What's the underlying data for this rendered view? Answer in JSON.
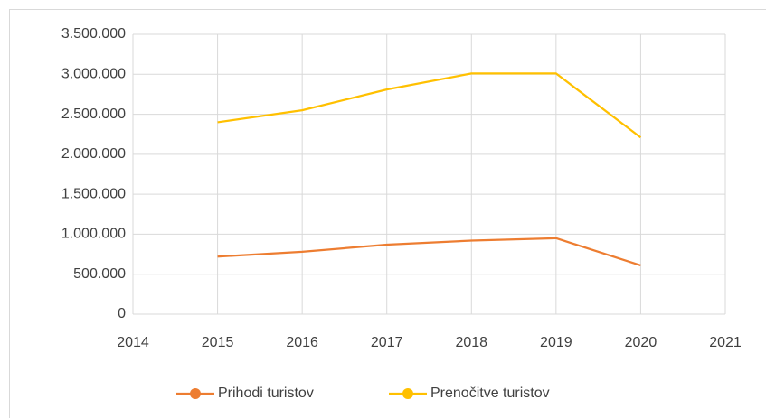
{
  "chart_data": {
    "type": "line",
    "x": [
      2015,
      2016,
      2017,
      2018,
      2019,
      2020
    ],
    "series": [
      {
        "name": "Prihodi turistov",
        "color": "#ed7d31",
        "values": [
          720000,
          780000,
          870000,
          920000,
          950000,
          610000
        ]
      },
      {
        "name": "Prenočitve turistov",
        "color": "#ffc000",
        "values": [
          2400000,
          2550000,
          2810000,
          3010000,
          3010000,
          2210000
        ]
      }
    ],
    "xlim": [
      2014,
      2021
    ],
    "xticks": [
      2014,
      2015,
      2016,
      2017,
      2018,
      2019,
      2020,
      2021
    ],
    "ylim": [
      0,
      3500000
    ],
    "yticks": [
      0,
      {
        "value": 500000,
        "label": "500.000"
      },
      {
        "value": 1000000,
        "label": "1.000.000"
      },
      {
        "value": 1500000,
        "label": "1.500.000"
      },
      {
        "value": 2000000,
        "label": "2.000.000"
      },
      {
        "value": 2500000,
        "label": "2.500.000"
      },
      {
        "value": 3000000,
        "label": "3.000.000"
      },
      {
        "value": 3500000,
        "label": "3.500.000"
      }
    ],
    "grid": true,
    "legend": "bottom"
  }
}
